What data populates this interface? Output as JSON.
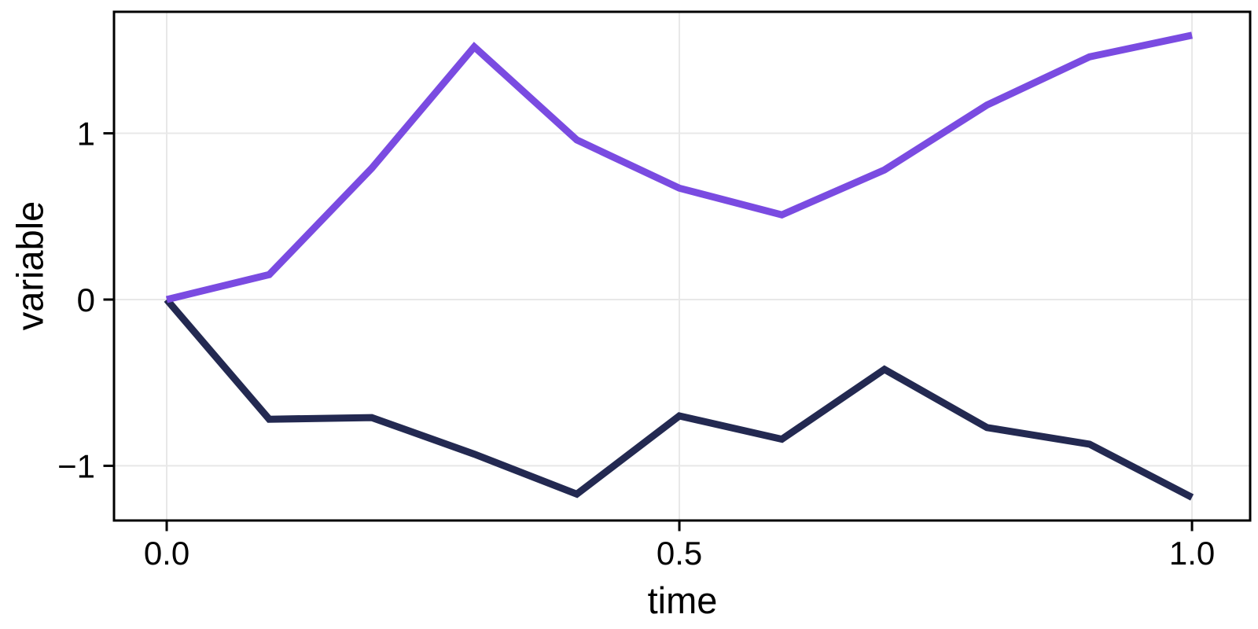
{
  "chart_data": {
    "type": "line",
    "title": "",
    "xlabel": "time",
    "ylabel": "variable",
    "x": [
      0.0,
      0.1,
      0.2,
      0.3,
      0.4,
      0.5,
      0.6,
      0.7,
      0.8,
      0.9,
      1.0
    ],
    "series": [
      {
        "color": "#232951",
        "values": [
          0.0,
          -0.72,
          -0.71,
          -0.93,
          -1.17,
          -0.7,
          -0.84,
          -0.42,
          -0.77,
          -0.87,
          -1.19
        ]
      },
      {
        "color": "#7A4BE1",
        "values": [
          0.0,
          0.15,
          0.79,
          1.52,
          0.96,
          0.67,
          0.51,
          0.78,
          1.17,
          1.46,
          1.59
        ]
      }
    ],
    "x_ticks": [
      {
        "value": 0.0,
        "label": "0.0"
      },
      {
        "value": 0.5,
        "label": "0.5"
      },
      {
        "value": 1.0,
        "label": "1.0"
      }
    ],
    "y_ticks": [
      {
        "value": 1,
        "label": "1"
      },
      {
        "value": 0,
        "label": "0"
      },
      {
        "value": -1,
        "label": "−1"
      }
    ],
    "xlim": [
      -0.0514,
      1.0567
    ],
    "ylim": [
      -1.329,
      1.731
    ],
    "grid": true,
    "legend": "none",
    "colors": {
      "background": "#ffffff",
      "frame": "#000000",
      "grid": "#e8e8e8",
      "tick_text": "#000000"
    }
  }
}
